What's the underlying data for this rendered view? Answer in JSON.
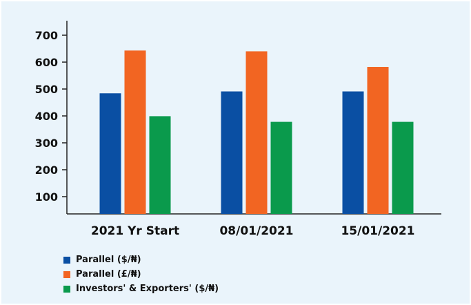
{
  "chart_data": {
    "type": "bar",
    "categories": [
      "2021 Yr Start",
      "08/01/2021",
      "15/01/2021"
    ],
    "series": [
      {
        "name": "Parallel ($/₦)",
        "color": "#0a4fa3",
        "values": [
          484,
          491,
          491
        ]
      },
      {
        "name": "Parallel (£/₦)",
        "color": "#f26522",
        "values": [
          643,
          640,
          582
        ]
      },
      {
        "name": "Investors' & Exporters' ($/₦)",
        "color": "#0a9a4c",
        "values": [
          399,
          378,
          378
        ]
      }
    ],
    "yticks": [
      100,
      200,
      300,
      400,
      500,
      600,
      700
    ],
    "ylim": [
      0,
      700
    ],
    "grid": false,
    "legend_position": "bottom-left"
  }
}
